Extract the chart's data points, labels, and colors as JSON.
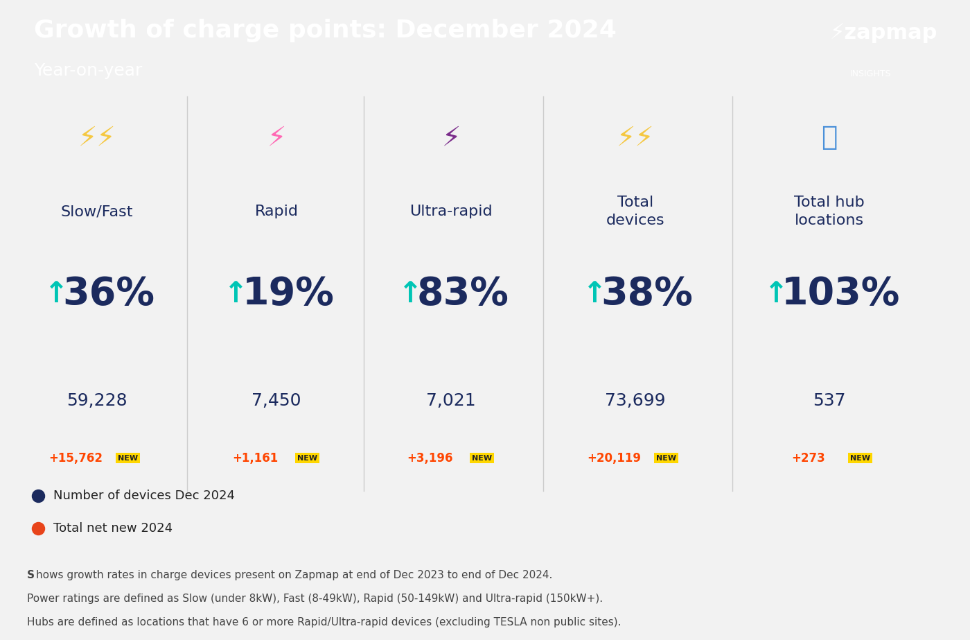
{
  "title": "Growth of charge points: December 2024",
  "subtitle": "Year-on-year",
  "header_bg": "#00C5B5",
  "body_bg": "#F2F2F2",
  "footer_bg": "#E4E4E4",
  "categories": [
    "Slow/Fast",
    "Rapid",
    "Ultra-rapid",
    "Total\ndevices",
    "Total hub\nlocations"
  ],
  "percentages": [
    "36%",
    "19%",
    "83%",
    "38%",
    "103%"
  ],
  "totals": [
    "59,228",
    "7,450",
    "7,021",
    "73,699",
    "537"
  ],
  "net_new": [
    "+15,762",
    "+1,161",
    "+3,196",
    "+20,119",
    "+273"
  ],
  "net_new_color": "#FF4500",
  "new_badge_bg": "#FFD700",
  "new_badge_text": "NEW",
  "percent_color": "#1B2A5E",
  "arrow_color": "#00C5B5",
  "total_color": "#1B2A5E",
  "category_color": "#1B2A5E",
  "legend_dot1_color": "#1B2A5E",
  "legend_dot2_color": "#E8441A",
  "legend_label1": "Number of devices Dec 2024",
  "legend_label2": "Total net new 2024",
  "footer_line1": "hows growth rates in charge devices present on Zapmap at end of Dec 2023 to end of Dec 2024.",
  "footer_line2": "Power ratings are defined as Slow (under 8kW), Fast (8-49kW), Rapid (50-149kW) and Ultra-rapid (150kW+).",
  "footer_line3": "Hubs are defined as locations that have 6 or more Rapid/Ultra-rapid devices (excluding TESLA non public sites).",
  "divider_color": "#CCCCCC",
  "zapmap_logo": "⚡zapmap",
  "zapmap_sub": "INSIGHTS"
}
